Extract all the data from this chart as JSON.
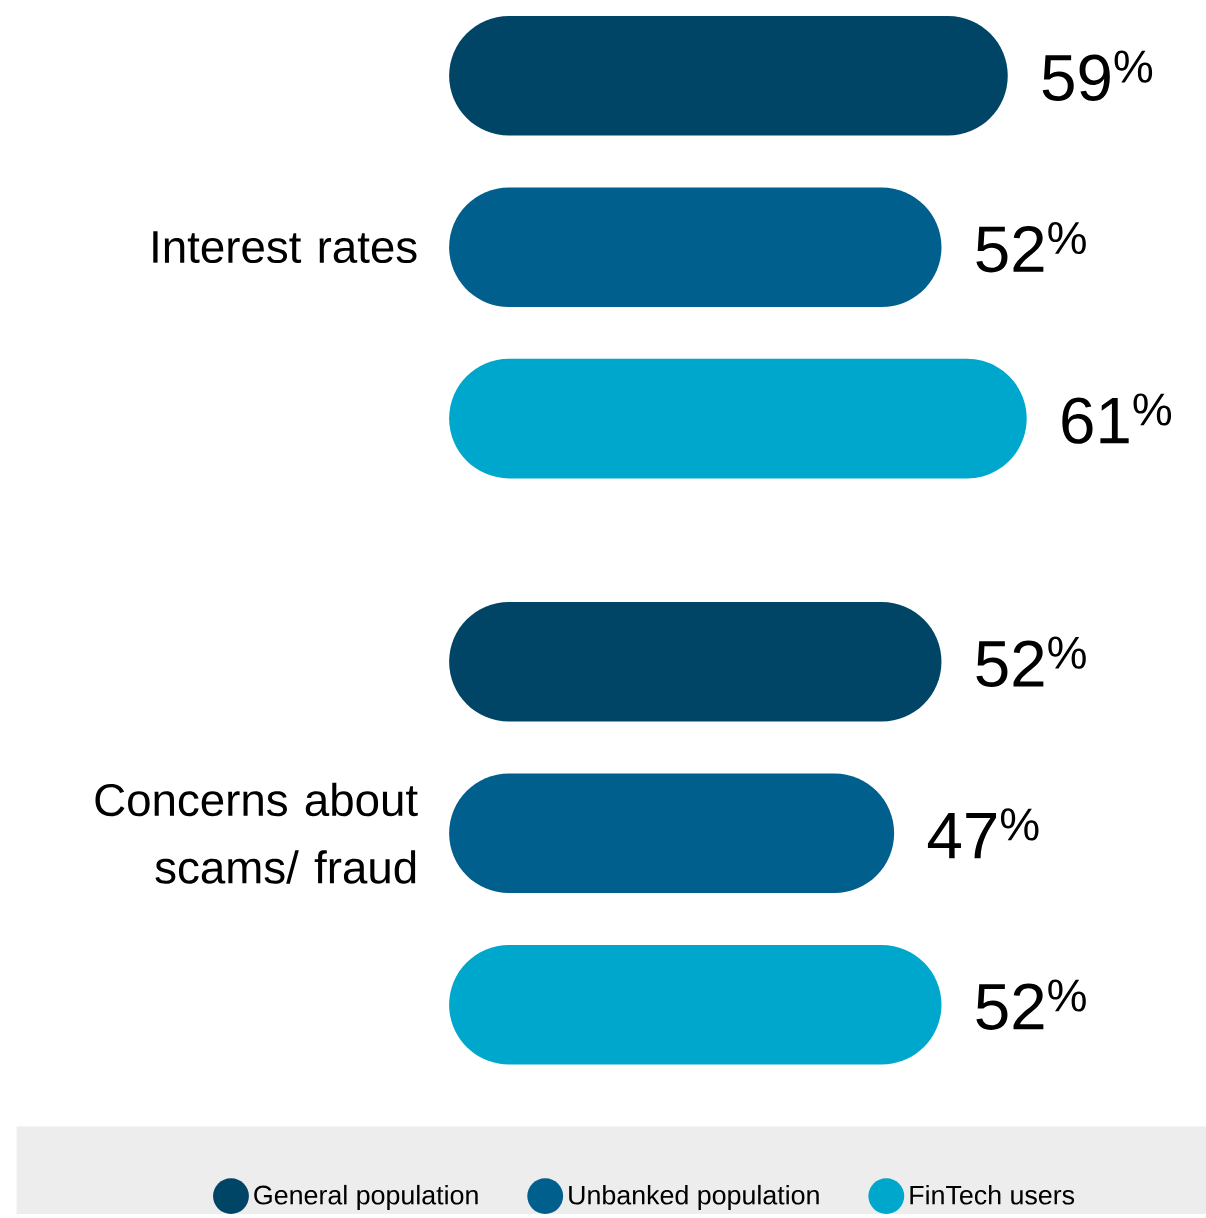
{
  "chart_data": {
    "type": "bar",
    "orientation": "horizontal",
    "categories": [
      "Interest rates",
      "Concerns about scams/ fraud"
    ],
    "series": [
      {
        "name": "General population",
        "color": "#004466",
        "values": [
          59,
          52
        ],
        "value_labels": [
          "59$^{%}$",
          "52$^{%}$"
        ]
      },
      {
        "name": "Unbanked population",
        "color": "#005f8c",
        "values": [
          52,
          47
        ],
        "value_labels": [
          "52$^{%}$",
          "47$^{%}$"
        ]
      },
      {
        "name": "FinTech users",
        "color": "#00a7cc",
        "values": [
          61,
          52
        ],
        "value_labels": [
          "61$^{%}$",
          "52$^{%}$"
        ]
      }
    ],
    "legend": "bottom",
    "tick_labels": "y"
  }
}
